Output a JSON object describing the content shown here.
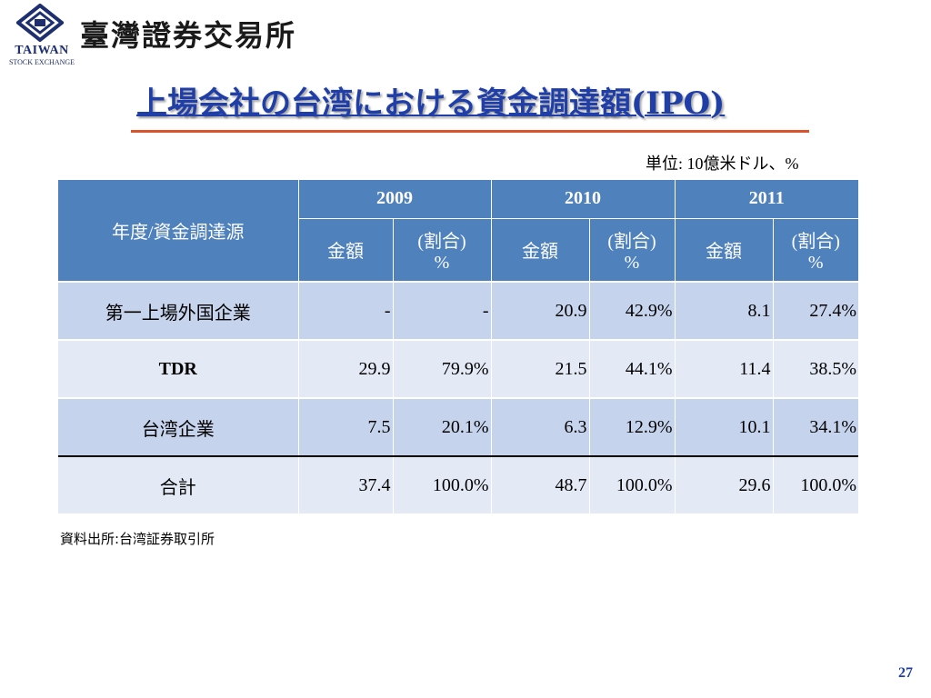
{
  "header": {
    "org_name": "臺灣證券交易所",
    "logo_en": "TAIWAN",
    "logo_sub": "STOCK EXCHANGE",
    "logo_icon": "twse-diamond-logo-icon"
  },
  "title": "上場会社の台湾における資金調達額(IPO)",
  "unit": "単位: 10億米ドル、%",
  "table": {
    "corner": "年度/資金調達源",
    "years": [
      "2009",
      "2010",
      "2011"
    ],
    "sub_amount": "金額",
    "sub_ratio_1": "(割合)",
    "sub_ratio_2": "%",
    "rows": [
      {
        "label": "第一上場外国企業",
        "cells": [
          "-",
          "-",
          "20.9",
          "42.9%",
          "8.1",
          "27.4%"
        ]
      },
      {
        "label": "TDR",
        "cells": [
          "29.9",
          "79.9%",
          "21.5",
          "44.1%",
          "11.4",
          "38.5%"
        ]
      },
      {
        "label": "台湾企業",
        "cells": [
          "7.5",
          "20.1%",
          "6.3",
          "12.9%",
          "10.1",
          "34.1%"
        ]
      },
      {
        "label": "合計",
        "cells": [
          "37.4",
          "100.0%",
          "48.7",
          "100.0%",
          "29.6",
          "100.0%"
        ]
      }
    ]
  },
  "source": "資料出所:台湾証券取引所",
  "page_number": "27",
  "colors": {
    "header_bg": "#4f81bd",
    "row_dark": "#c5d3ec",
    "row_light": "#e4eaf5",
    "title": "#1f3ea8",
    "rule": "#d9532b"
  }
}
